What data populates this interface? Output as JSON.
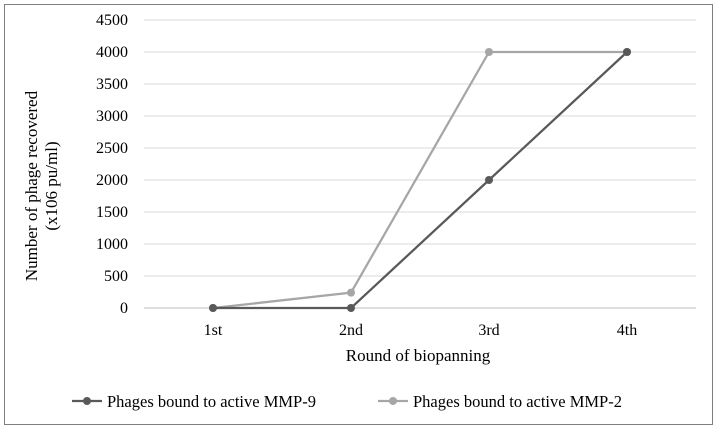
{
  "chart_data": {
    "type": "line",
    "title": "",
    "xlabel": "Round of biopanning",
    "ylabel_line1": "Number of phage recovered",
    "ylabel_line2": "(x106  pu/ml)",
    "categories": [
      "1st",
      "2nd",
      "3rd",
      "4th"
    ],
    "ylim": [
      0,
      4500
    ],
    "yticks": [
      0,
      500,
      1000,
      1500,
      2000,
      2500,
      3000,
      3500,
      4000,
      4500
    ],
    "grid": true,
    "legend_position": "bottom",
    "series": [
      {
        "name": "Phages bound to active MMP-9",
        "values": [
          0,
          0,
          2000,
          4000
        ],
        "color": "#595959"
      },
      {
        "name": "Phages bound to active MMP-2",
        "values": [
          0,
          240,
          4000,
          4000
        ],
        "color": "#a6a6a6"
      }
    ]
  }
}
